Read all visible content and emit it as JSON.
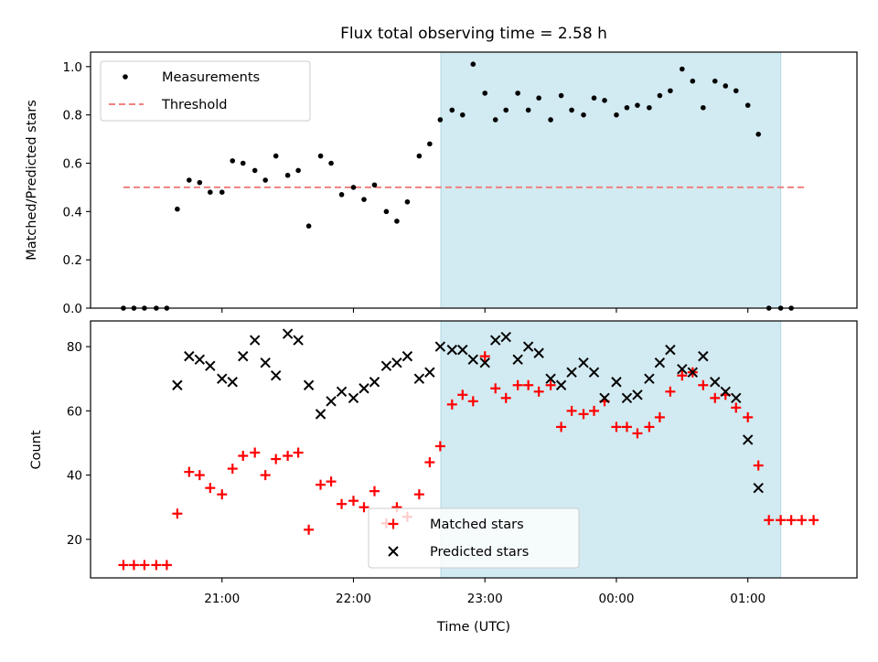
{
  "chart_data": {
    "title": "Flux total observing time = 2.58 h",
    "xlabel": "Time (UTC)",
    "x_unit": "hours since 20:00 UTC",
    "x_range": [
      0.0,
      5.83
    ],
    "x_ticks": [
      {
        "value": 1.0,
        "label": "21:00"
      },
      {
        "value": 2.0,
        "label": "22:00"
      },
      {
        "value": 3.0,
        "label": "23:00"
      },
      {
        "value": 4.0,
        "label": "00:00"
      },
      {
        "value": 5.0,
        "label": "01:00"
      }
    ],
    "observing_window": {
      "start": 2.665,
      "end": 5.25,
      "color": "#add8e6"
    },
    "panels": [
      {
        "type": "scatter",
        "ylabel": "Matched/Predicted stars",
        "ylim": [
          0.0,
          1.06
        ],
        "y_ticks": [
          0.0,
          0.2,
          0.4,
          0.6,
          0.8,
          1.0
        ],
        "legend": {
          "position": "upper-left",
          "entries": [
            "Measurements",
            "Threshold"
          ]
        },
        "threshold": {
          "name": "Threshold",
          "value": 0.5,
          "x_range": [
            0.25,
            5.45
          ],
          "color": "#f08080"
        },
        "series": [
          {
            "name": "Measurements",
            "color": "#000000",
            "marker": "dot",
            "points": [
              [
                0.25,
                0.0
              ],
              [
                0.33,
                0.0
              ],
              [
                0.41,
                0.0
              ],
              [
                0.5,
                0.0
              ],
              [
                0.58,
                0.0
              ],
              [
                0.66,
                0.41
              ],
              [
                0.75,
                0.53
              ],
              [
                0.83,
                0.52
              ],
              [
                0.91,
                0.48
              ],
              [
                1.0,
                0.48
              ],
              [
                1.08,
                0.61
              ],
              [
                1.16,
                0.6
              ],
              [
                1.25,
                0.57
              ],
              [
                1.33,
                0.53
              ],
              [
                1.41,
                0.63
              ],
              [
                1.5,
                0.55
              ],
              [
                1.58,
                0.57
              ],
              [
                1.66,
                0.34
              ],
              [
                1.75,
                0.63
              ],
              [
                1.83,
                0.6
              ],
              [
                1.91,
                0.47
              ],
              [
                2.0,
                0.5
              ],
              [
                2.08,
                0.45
              ],
              [
                2.16,
                0.51
              ],
              [
                2.25,
                0.4
              ],
              [
                2.33,
                0.36
              ],
              [
                2.41,
                0.44
              ],
              [
                2.5,
                0.63
              ],
              [
                2.58,
                0.68
              ],
              [
                2.66,
                0.78
              ],
              [
                2.75,
                0.82
              ],
              [
                2.83,
                0.8
              ],
              [
                2.91,
                1.01
              ],
              [
                3.0,
                0.89
              ],
              [
                3.08,
                0.78
              ],
              [
                3.16,
                0.82
              ],
              [
                3.25,
                0.89
              ],
              [
                3.33,
                0.82
              ],
              [
                3.41,
                0.87
              ],
              [
                3.5,
                0.78
              ],
              [
                3.58,
                0.88
              ],
              [
                3.66,
                0.82
              ],
              [
                3.75,
                0.8
              ],
              [
                3.83,
                0.87
              ],
              [
                3.91,
                0.86
              ],
              [
                4.0,
                0.8
              ],
              [
                4.08,
                0.83
              ],
              [
                4.16,
                0.84
              ],
              [
                4.25,
                0.83
              ],
              [
                4.33,
                0.88
              ],
              [
                4.41,
                0.9
              ],
              [
                4.5,
                0.99
              ],
              [
                4.58,
                0.94
              ],
              [
                4.66,
                0.83
              ],
              [
                4.75,
                0.94
              ],
              [
                4.83,
                0.92
              ],
              [
                4.91,
                0.9
              ],
              [
                5.0,
                0.84
              ],
              [
                5.08,
                0.72
              ],
              [
                5.16,
                0.0
              ],
              [
                5.25,
                0.0
              ],
              [
                5.33,
                0.0
              ]
            ]
          }
        ]
      },
      {
        "type": "scatter",
        "ylabel": "Count",
        "ylim": [
          8,
          88
        ],
        "y_ticks": [
          20,
          40,
          60,
          80
        ],
        "legend": {
          "position": "lower-center",
          "entries": [
            "Matched stars",
            "Predicted stars"
          ]
        },
        "series": [
          {
            "name": "Matched stars",
            "color": "#ff0000",
            "marker": "plus",
            "points": [
              [
                0.25,
                12
              ],
              [
                0.33,
                12
              ],
              [
                0.41,
                12
              ],
              [
                0.5,
                12
              ],
              [
                0.58,
                12
              ],
              [
                0.66,
                28
              ],
              [
                0.75,
                41
              ],
              [
                0.83,
                40
              ],
              [
                0.91,
                36
              ],
              [
                1.0,
                34
              ],
              [
                1.08,
                42
              ],
              [
                1.16,
                46
              ],
              [
                1.25,
                47
              ],
              [
                1.33,
                40
              ],
              [
                1.41,
                45
              ],
              [
                1.5,
                46
              ],
              [
                1.58,
                47
              ],
              [
                1.66,
                23
              ],
              [
                1.75,
                37
              ],
              [
                1.83,
                38
              ],
              [
                1.91,
                31
              ],
              [
                2.0,
                32
              ],
              [
                2.08,
                30
              ],
              [
                2.16,
                35
              ],
              [
                2.25,
                25
              ],
              [
                2.33,
                30
              ],
              [
                2.41,
                27
              ],
              [
                2.5,
                34
              ],
              [
                2.58,
                44
              ],
              [
                2.66,
                49
              ],
              [
                2.75,
                62
              ],
              [
                2.83,
                65
              ],
              [
                2.91,
                63
              ],
              [
                3.0,
                77
              ],
              [
                3.08,
                67
              ],
              [
                3.16,
                64
              ],
              [
                3.25,
                68
              ],
              [
                3.33,
                68
              ],
              [
                3.41,
                66
              ],
              [
                3.5,
                68
              ],
              [
                3.58,
                55
              ],
              [
                3.66,
                60
              ],
              [
                3.75,
                59
              ],
              [
                3.83,
                60
              ],
              [
                3.91,
                63
              ],
              [
                4.0,
                55
              ],
              [
                4.08,
                55
              ],
              [
                4.16,
                53
              ],
              [
                4.25,
                55
              ],
              [
                4.33,
                58
              ],
              [
                4.41,
                66
              ],
              [
                4.5,
                71
              ],
              [
                4.58,
                72
              ],
              [
                4.66,
                68
              ],
              [
                4.75,
                64
              ],
              [
                4.83,
                65
              ],
              [
                4.91,
                61
              ],
              [
                5.0,
                58
              ],
              [
                5.08,
                43
              ],
              [
                5.16,
                26
              ],
              [
                5.25,
                26
              ],
              [
                5.33,
                26
              ],
              [
                5.41,
                26
              ],
              [
                5.5,
                26
              ]
            ]
          },
          {
            "name": "Predicted stars",
            "color": "#000000",
            "marker": "x",
            "points": [
              [
                0.66,
                68
              ],
              [
                0.75,
                77
              ],
              [
                0.83,
                76
              ],
              [
                0.91,
                74
              ],
              [
                1.0,
                70
              ],
              [
                1.08,
                69
              ],
              [
                1.16,
                77
              ],
              [
                1.25,
                82
              ],
              [
                1.33,
                75
              ],
              [
                1.41,
                71
              ],
              [
                1.5,
                84
              ],
              [
                1.58,
                82
              ],
              [
                1.66,
                68
              ],
              [
                1.75,
                59
              ],
              [
                1.83,
                63
              ],
              [
                1.91,
                66
              ],
              [
                2.0,
                64
              ],
              [
                2.08,
                67
              ],
              [
                2.16,
                69
              ],
              [
                2.25,
                74
              ],
              [
                2.33,
                75
              ],
              [
                2.41,
                77
              ],
              [
                2.5,
                70
              ],
              [
                2.58,
                72
              ],
              [
                2.66,
                80
              ],
              [
                2.75,
                79
              ],
              [
                2.83,
                79
              ],
              [
                2.91,
                76
              ],
              [
                3.0,
                75
              ],
              [
                3.08,
                82
              ],
              [
                3.16,
                83
              ],
              [
                3.25,
                76
              ],
              [
                3.33,
                80
              ],
              [
                3.41,
                78
              ],
              [
                3.5,
                70
              ],
              [
                3.58,
                68
              ],
              [
                3.66,
                72
              ],
              [
                3.75,
                75
              ],
              [
                3.83,
                72
              ],
              [
                3.91,
                64
              ],
              [
                4.0,
                69
              ],
              [
                4.08,
                64
              ],
              [
                4.16,
                65
              ],
              [
                4.25,
                70
              ],
              [
                4.33,
                75
              ],
              [
                4.41,
                79
              ],
              [
                4.5,
                73
              ],
              [
                4.58,
                72
              ],
              [
                4.66,
                77
              ],
              [
                4.75,
                69
              ],
              [
                4.83,
                66
              ],
              [
                4.91,
                64
              ],
              [
                5.0,
                51
              ],
              [
                5.08,
                36
              ]
            ]
          }
        ]
      }
    ]
  }
}
